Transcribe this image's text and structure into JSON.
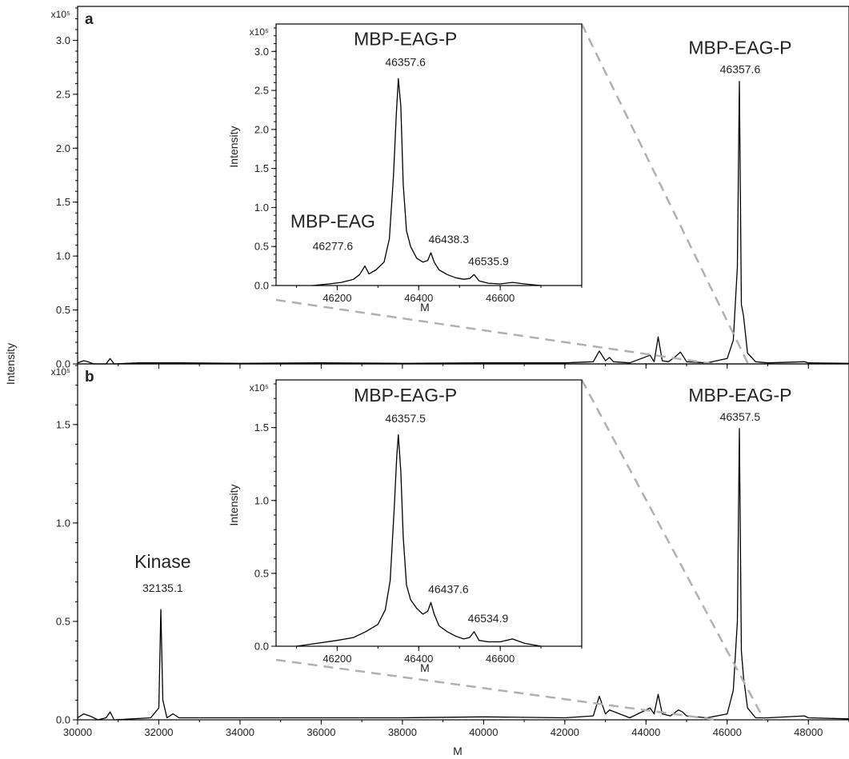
{
  "figure": {
    "ylabel": "Intensity",
    "xlabel": "M"
  },
  "chart_data": [
    {
      "id": "a",
      "type": "line",
      "panel_label": "a",
      "x_ticks": [
        30000,
        32000,
        34000,
        36000,
        38000,
        40000,
        42000,
        44000,
        46000,
        48000
      ],
      "xlim": [
        30000,
        49000
      ],
      "ylim": [
        0,
        3.3
      ],
      "y_ticks": [
        0.0,
        0.5,
        1.0,
        1.5,
        2.0,
        2.5,
        3.0
      ],
      "y_exponent": "x10⁵",
      "series": [
        {
          "points": [
            [
              30000,
              0.01
            ],
            [
              30150,
              0.03
            ],
            [
              30250,
              0.02
            ],
            [
              30400,
              0.0
            ],
            [
              30700,
              0.0
            ],
            [
              30800,
              0.05
            ],
            [
              30900,
              0.0
            ],
            [
              31500,
              0.01
            ],
            [
              32500,
              0.01
            ],
            [
              34000,
              0.005
            ],
            [
              36000,
              0.01
            ],
            [
              38000,
              0.005
            ],
            [
              40000,
              0.01
            ],
            [
              42000,
              0.01
            ],
            [
              42700,
              0.02
            ],
            [
              42850,
              0.12
            ],
            [
              43000,
              0.03
            ],
            [
              43100,
              0.06
            ],
            [
              43200,
              0.02
            ],
            [
              43600,
              0.01
            ],
            [
              44100,
              0.08
            ],
            [
              44200,
              0.02
            ],
            [
              44300,
              0.25
            ],
            [
              44400,
              0.03
            ],
            [
              44550,
              0.02
            ],
            [
              44700,
              0.06
            ],
            [
              44850,
              0.11
            ],
            [
              45000,
              0.02
            ],
            [
              45500,
              0.01
            ],
            [
              46000,
              0.05
            ],
            [
              46150,
              0.22
            ],
            [
              46250,
              0.9
            ],
            [
              46300,
              2.62
            ],
            [
              46350,
              0.55
            ],
            [
              46400,
              0.45
            ],
            [
              46500,
              0.1
            ],
            [
              46700,
              0.02
            ],
            [
              47000,
              0.01
            ],
            [
              47900,
              0.02
            ],
            [
              48000,
              0.01
            ],
            [
              49000,
              0.005
            ]
          ]
        }
      ],
      "annotations": [
        {
          "name": "MBP-EAG-P",
          "value": "46357.6",
          "x": 46357.6,
          "y": 2.62
        }
      ],
      "inset": {
        "type": "line",
        "xlim": [
          46050,
          46800
        ],
        "x_ticks": [
          46200,
          46400,
          46600
        ],
        "ylim": [
          0,
          3.3
        ],
        "y_ticks": [
          0.0,
          0.5,
          1.0,
          1.5,
          2.0,
          2.5,
          3.0
        ],
        "y_exponent": "x10⁵",
        "ylabel": "Intensity",
        "xlabel": "M",
        "series": [
          {
            "points": [
              [
                46140,
                0.0
              ],
              [
                46180,
                0.02
              ],
              [
                46210,
                0.04
              ],
              [
                46240,
                0.08
              ],
              [
                46255,
                0.14
              ],
              [
                46268,
                0.25
              ],
              [
                46278,
                0.15
              ],
              [
                46295,
                0.2
              ],
              [
                46315,
                0.3
              ],
              [
                46328,
                0.6
              ],
              [
                46338,
                1.4
              ],
              [
                46345,
                2.2
              ],
              [
                46350,
                2.65
              ],
              [
                46356,
                2.3
              ],
              [
                46362,
                1.3
              ],
              [
                46370,
                0.7
              ],
              [
                46380,
                0.5
              ],
              [
                46395,
                0.35
              ],
              [
                46410,
                0.3
              ],
              [
                46422,
                0.32
              ],
              [
                46430,
                0.42
              ],
              [
                46438,
                0.3
              ],
              [
                46450,
                0.2
              ],
              [
                46470,
                0.14
              ],
              [
                46490,
                0.1
              ],
              [
                46510,
                0.08
              ],
              [
                46525,
                0.09
              ],
              [
                46536,
                0.14
              ],
              [
                46548,
                0.06
              ],
              [
                46570,
                0.03
              ],
              [
                46600,
                0.02
              ],
              [
                46630,
                0.04
              ],
              [
                46660,
                0.02
              ],
              [
                46700,
                0.0
              ]
            ]
          }
        ],
        "annotations": [
          {
            "name": "MBP-EAG-P",
            "value": "46357.6",
            "x": 46357.6,
            "y": 2.65
          },
          {
            "name": "MBP-EAG",
            "value": "46277.6",
            "x": 46277.6,
            "y": 0.25
          },
          {
            "name": "",
            "value": "46438.3",
            "x": 46438.3,
            "y": 0.42
          },
          {
            "name": "",
            "value": "46535.9",
            "x": 46535.9,
            "y": 0.14
          }
        ]
      }
    },
    {
      "id": "b",
      "type": "line",
      "panel_label": "b",
      "x_ticks": [
        30000,
        32000,
        34000,
        36000,
        38000,
        40000,
        42000,
        44000,
        46000,
        48000
      ],
      "xlim": [
        30000,
        49000
      ],
      "ylim": [
        0,
        1.8
      ],
      "y_ticks": [
        0.0,
        0.5,
        1.0,
        1.5
      ],
      "y_exponent": "x10⁵",
      "series": [
        {
          "points": [
            [
              30000,
              0.01
            ],
            [
              30150,
              0.03
            ],
            [
              30300,
              0.02
            ],
            [
              30500,
              0.0
            ],
            [
              30700,
              0.01
            ],
            [
              30800,
              0.04
            ],
            [
              30900,
              0.0
            ],
            [
              31800,
              0.01
            ],
            [
              32000,
              0.06
            ],
            [
              32050,
              0.56
            ],
            [
              32100,
              0.1
            ],
            [
              32200,
              0.01
            ],
            [
              32350,
              0.03
            ],
            [
              32500,
              0.01
            ],
            [
              34000,
              0.01
            ],
            [
              36000,
              0.01
            ],
            [
              38000,
              0.01
            ],
            [
              40000,
              0.015
            ],
            [
              42000,
              0.01
            ],
            [
              42700,
              0.02
            ],
            [
              42850,
              0.12
            ],
            [
              43000,
              0.03
            ],
            [
              43100,
              0.05
            ],
            [
              43600,
              0.01
            ],
            [
              44100,
              0.06
            ],
            [
              44200,
              0.03
            ],
            [
              44300,
              0.13
            ],
            [
              44400,
              0.03
            ],
            [
              44600,
              0.02
            ],
            [
              44800,
              0.05
            ],
            [
              44900,
              0.04
            ],
            [
              45000,
              0.02
            ],
            [
              45500,
              0.01
            ],
            [
              46000,
              0.03
            ],
            [
              46150,
              0.15
            ],
            [
              46250,
              0.5
            ],
            [
              46300,
              1.48
            ],
            [
              46350,
              0.35
            ],
            [
              46400,
              0.22
            ],
            [
              46500,
              0.06
            ],
            [
              46700,
              0.01
            ],
            [
              47000,
              0.01
            ],
            [
              47900,
              0.02
            ],
            [
              48000,
              0.01
            ],
            [
              49000,
              0.005
            ]
          ]
        }
      ],
      "annotations": [
        {
          "name": "MBP-EAG-P",
          "value": "46357.5",
          "x": 46357.5,
          "y": 1.48
        },
        {
          "name": "Kinase",
          "value": "32135.1",
          "x": 32135.1,
          "y": 0.56
        }
      ],
      "inset": {
        "type": "line",
        "xlim": [
          46050,
          46800
        ],
        "x_ticks": [
          46200,
          46400,
          46600
        ],
        "ylim": [
          0,
          1.8
        ],
        "y_ticks": [
          0.0,
          0.5,
          1.0,
          1.5
        ],
        "y_exponent": "x10⁵",
        "ylabel": "Intensity",
        "xlabel": "M",
        "series": [
          {
            "points": [
              [
                46100,
                0.0
              ],
              [
                46150,
                0.02
              ],
              [
                46200,
                0.04
              ],
              [
                46240,
                0.06
              ],
              [
                46270,
                0.1
              ],
              [
                46300,
                0.15
              ],
              [
                46318,
                0.25
              ],
              [
                46330,
                0.45
              ],
              [
                46340,
                0.95
              ],
              [
                46346,
                1.3
              ],
              [
                46350,
                1.45
              ],
              [
                46356,
                1.2
              ],
              [
                46362,
                0.75
              ],
              [
                46370,
                0.42
              ],
              [
                46380,
                0.32
              ],
              [
                46395,
                0.26
              ],
              [
                46410,
                0.22
              ],
              [
                46422,
                0.24
              ],
              [
                46430,
                0.3
              ],
              [
                46438,
                0.22
              ],
              [
                46450,
                0.14
              ],
              [
                46470,
                0.1
              ],
              [
                46490,
                0.07
              ],
              [
                46510,
                0.05
              ],
              [
                46525,
                0.06
              ],
              [
                46536,
                0.1
              ],
              [
                46548,
                0.04
              ],
              [
                46570,
                0.03
              ],
              [
                46600,
                0.03
              ],
              [
                46630,
                0.05
              ],
              [
                46660,
                0.02
              ],
              [
                46700,
                0.0
              ]
            ]
          }
        ],
        "annotations": [
          {
            "name": "MBP-EAG-P",
            "value": "46357.5",
            "x": 46357.5,
            "y": 1.45
          },
          {
            "name": "",
            "value": "46437.6",
            "x": 46437.6,
            "y": 0.3
          },
          {
            "name": "",
            "value": "46534.9",
            "x": 46534.9,
            "y": 0.1
          }
        ]
      }
    }
  ]
}
